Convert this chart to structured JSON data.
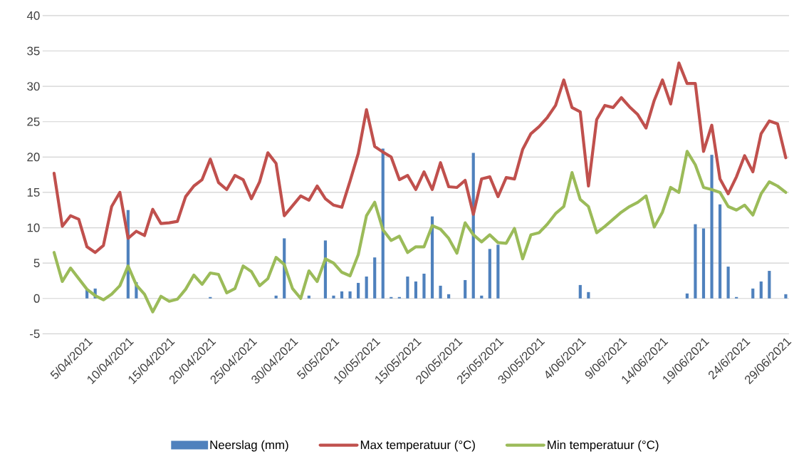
{
  "chart_data": {
    "type": "line",
    "categories": [
      null,
      null,
      null,
      null,
      "5/04/2021",
      null,
      null,
      null,
      null,
      "10/04/2021",
      null,
      null,
      null,
      null,
      "15/04/2021",
      null,
      null,
      null,
      null,
      "20/04/2021",
      null,
      null,
      null,
      null,
      "25/04/2021",
      null,
      null,
      null,
      null,
      "30/04/2021",
      null,
      null,
      null,
      null,
      "5/05/2021",
      null,
      null,
      null,
      null,
      "10/05/2021",
      null,
      null,
      null,
      null,
      "15/05/2021",
      null,
      null,
      null,
      null,
      "20/05/2021",
      null,
      null,
      null,
      null,
      "25/05/2021",
      null,
      null,
      null,
      null,
      "30/05/2021",
      null,
      null,
      null,
      null,
      "4/06/2021",
      null,
      null,
      null,
      null,
      "9/06/2021",
      null,
      null,
      null,
      null,
      "14/06/2021",
      null,
      null,
      null,
      null,
      "19/06/2021",
      null,
      null,
      null,
      null,
      "24/6/2021",
      null,
      null,
      null,
      null,
      "29/06/2021"
    ],
    "series": [
      {
        "name": "Neerslag (mm)",
        "type": "bar",
        "color": "#4f81bd",
        "values": [
          0,
          0,
          0,
          0,
          1.3,
          1.4,
          0,
          0,
          0,
          12.5,
          2.3,
          0,
          0,
          0,
          0,
          0,
          0,
          0,
          0,
          0.2,
          0,
          0,
          0,
          0,
          0,
          0,
          0,
          0.4,
          8.5,
          0,
          0,
          0.4,
          0,
          8.2,
          0.4,
          1.0,
          1.0,
          2.2,
          3.1,
          5.8,
          21.2,
          0.2,
          0.2,
          3.1,
          2.4,
          3.5,
          11.6,
          1.8,
          0.6,
          0,
          2.6,
          20.6,
          0.4,
          7.0,
          7.6,
          0,
          0,
          0,
          0,
          0,
          0,
          0,
          0,
          0,
          1.9,
          0.9,
          0,
          0,
          0,
          0,
          0,
          0,
          0,
          0,
          0,
          0,
          0,
          0.7,
          10.5,
          9.9,
          20.3,
          13.3,
          4.5,
          0.2,
          0,
          1.4,
          2.4,
          3.9,
          0,
          0.6
        ]
      },
      {
        "name": "Max temperatuur (°C)",
        "color": "#c0504d",
        "values": [
          17.7,
          10.2,
          11.7,
          11.2,
          7.3,
          6.5,
          7.5,
          13.0,
          15.0,
          8.5,
          9.5,
          8.9,
          12.6,
          10.6,
          10.7,
          10.9,
          14.4,
          15.9,
          16.8,
          19.7,
          16.4,
          15.4,
          17.4,
          16.8,
          14.1,
          16.5,
          20.6,
          19.1,
          11.7,
          13.1,
          14.5,
          13.9,
          15.9,
          14.1,
          13.2,
          12.9,
          16.6,
          20.5,
          26.7,
          21.5,
          20.7,
          20.0,
          16.8,
          17.4,
          15.4,
          17.9,
          15.4,
          19.2,
          15.8,
          15.7,
          16.7,
          11.9,
          16.9,
          17.2,
          14.4,
          17.1,
          16.9,
          21.1,
          23.3,
          24.3,
          25.6,
          27.3,
          30.9,
          27.0,
          26.4,
          15.9,
          25.3,
          27.3,
          27.0,
          28.4,
          27.1,
          26.0,
          24.1,
          28.0,
          30.9,
          27.5,
          33.3,
          30.4,
          30.4,
          20.8,
          24.5,
          16.9,
          14.8,
          17.2,
          20.2,
          17.9,
          23.3,
          25.1,
          24.7,
          19.9
        ]
      },
      {
        "name": "Min temperatuur (°C)",
        "color": "#9bbb59",
        "values": [
          6.5,
          2.4,
          4.3,
          2.8,
          1.3,
          0.4,
          -0.2,
          0.6,
          1.8,
          4.6,
          1.9,
          0.6,
          -1.9,
          0.3,
          -0.4,
          -0.1,
          1.3,
          3.3,
          2.0,
          3.6,
          3.4,
          0.8,
          1.4,
          4.6,
          3.8,
          1.8,
          2.8,
          5.8,
          4.8,
          1.4,
          0.0,
          3.9,
          2.4,
          5.6,
          5.0,
          3.7,
          3.2,
          6.2,
          11.7,
          13.6,
          9.7,
          8.2,
          8.8,
          6.5,
          7.3,
          7.3,
          10.3,
          9.8,
          8.5,
          6.4,
          10.7,
          9.0,
          8.0,
          9.0,
          7.9,
          7.8,
          9.9,
          5.6,
          9.0,
          9.3,
          10.5,
          12.0,
          13.0,
          17.8,
          14.0,
          13.0,
          9.3,
          10.2,
          11.2,
          12.2,
          13.0,
          13.6,
          14.5,
          10.1,
          12.2,
          15.7,
          15.0,
          20.8,
          18.9,
          15.7,
          15.4,
          15.0,
          13.0,
          12.5,
          13.2,
          11.8,
          14.8,
          16.5,
          15.9,
          15.0
        ]
      }
    ],
    "ylim": [
      -5,
      40
    ],
    "yticks": [
      -5,
      0,
      5,
      10,
      15,
      20,
      25,
      30,
      35,
      40
    ],
    "grid": "y",
    "legend": "bottom"
  }
}
